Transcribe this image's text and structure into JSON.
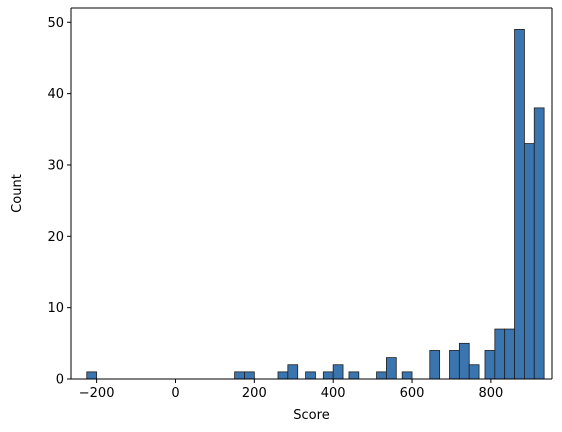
{
  "chart_data": {
    "type": "bar",
    "subtype": "histogram",
    "title": "",
    "xlabel": "Score",
    "ylabel": "Count",
    "xlim": [
      -265,
      955
    ],
    "ylim": [
      0,
      52
    ],
    "bin_width": 25,
    "xticks": [
      -200,
      0,
      200,
      400,
      600,
      800
    ],
    "xtick_labels": [
      "−200",
      "0",
      "200",
      "400",
      "600",
      "800"
    ],
    "yticks": [
      0,
      10,
      20,
      30,
      40,
      50
    ],
    "ytick_labels": [
      "0",
      "10",
      "20",
      "30",
      "40",
      "50"
    ],
    "grid": false,
    "legend": "none",
    "bar_color": "#3b75af",
    "bar_edge_color": "#1f1f1f",
    "bins": [
      {
        "x0": -225,
        "x1": -200,
        "count": 1
      },
      {
        "x0": 150,
        "x1": 175,
        "count": 1
      },
      {
        "x0": 175,
        "x1": 200,
        "count": 1
      },
      {
        "x0": 260,
        "x1": 285,
        "count": 1
      },
      {
        "x0": 285,
        "x1": 310,
        "count": 2
      },
      {
        "x0": 330,
        "x1": 355,
        "count": 1
      },
      {
        "x0": 375,
        "x1": 400,
        "count": 1
      },
      {
        "x0": 400,
        "x1": 425,
        "count": 2
      },
      {
        "x0": 440,
        "x1": 465,
        "count": 1
      },
      {
        "x0": 510,
        "x1": 535,
        "count": 1
      },
      {
        "x0": 535,
        "x1": 560,
        "count": 3
      },
      {
        "x0": 575,
        "x1": 600,
        "count": 1
      },
      {
        "x0": 645,
        "x1": 670,
        "count": 4
      },
      {
        "x0": 695,
        "x1": 720,
        "count": 4
      },
      {
        "x0": 720,
        "x1": 745,
        "count": 5
      },
      {
        "x0": 745,
        "x1": 770,
        "count": 2
      },
      {
        "x0": 785,
        "x1": 810,
        "count": 4
      },
      {
        "x0": 810,
        "x1": 835,
        "count": 7
      },
      {
        "x0": 835,
        "x1": 860,
        "count": 7
      },
      {
        "x0": 860,
        "x1": 885,
        "count": 49
      },
      {
        "x0": 885,
        "x1": 910,
        "count": 33
      },
      {
        "x0": 910,
        "x1": 935,
        "count": 38
      }
    ]
  }
}
